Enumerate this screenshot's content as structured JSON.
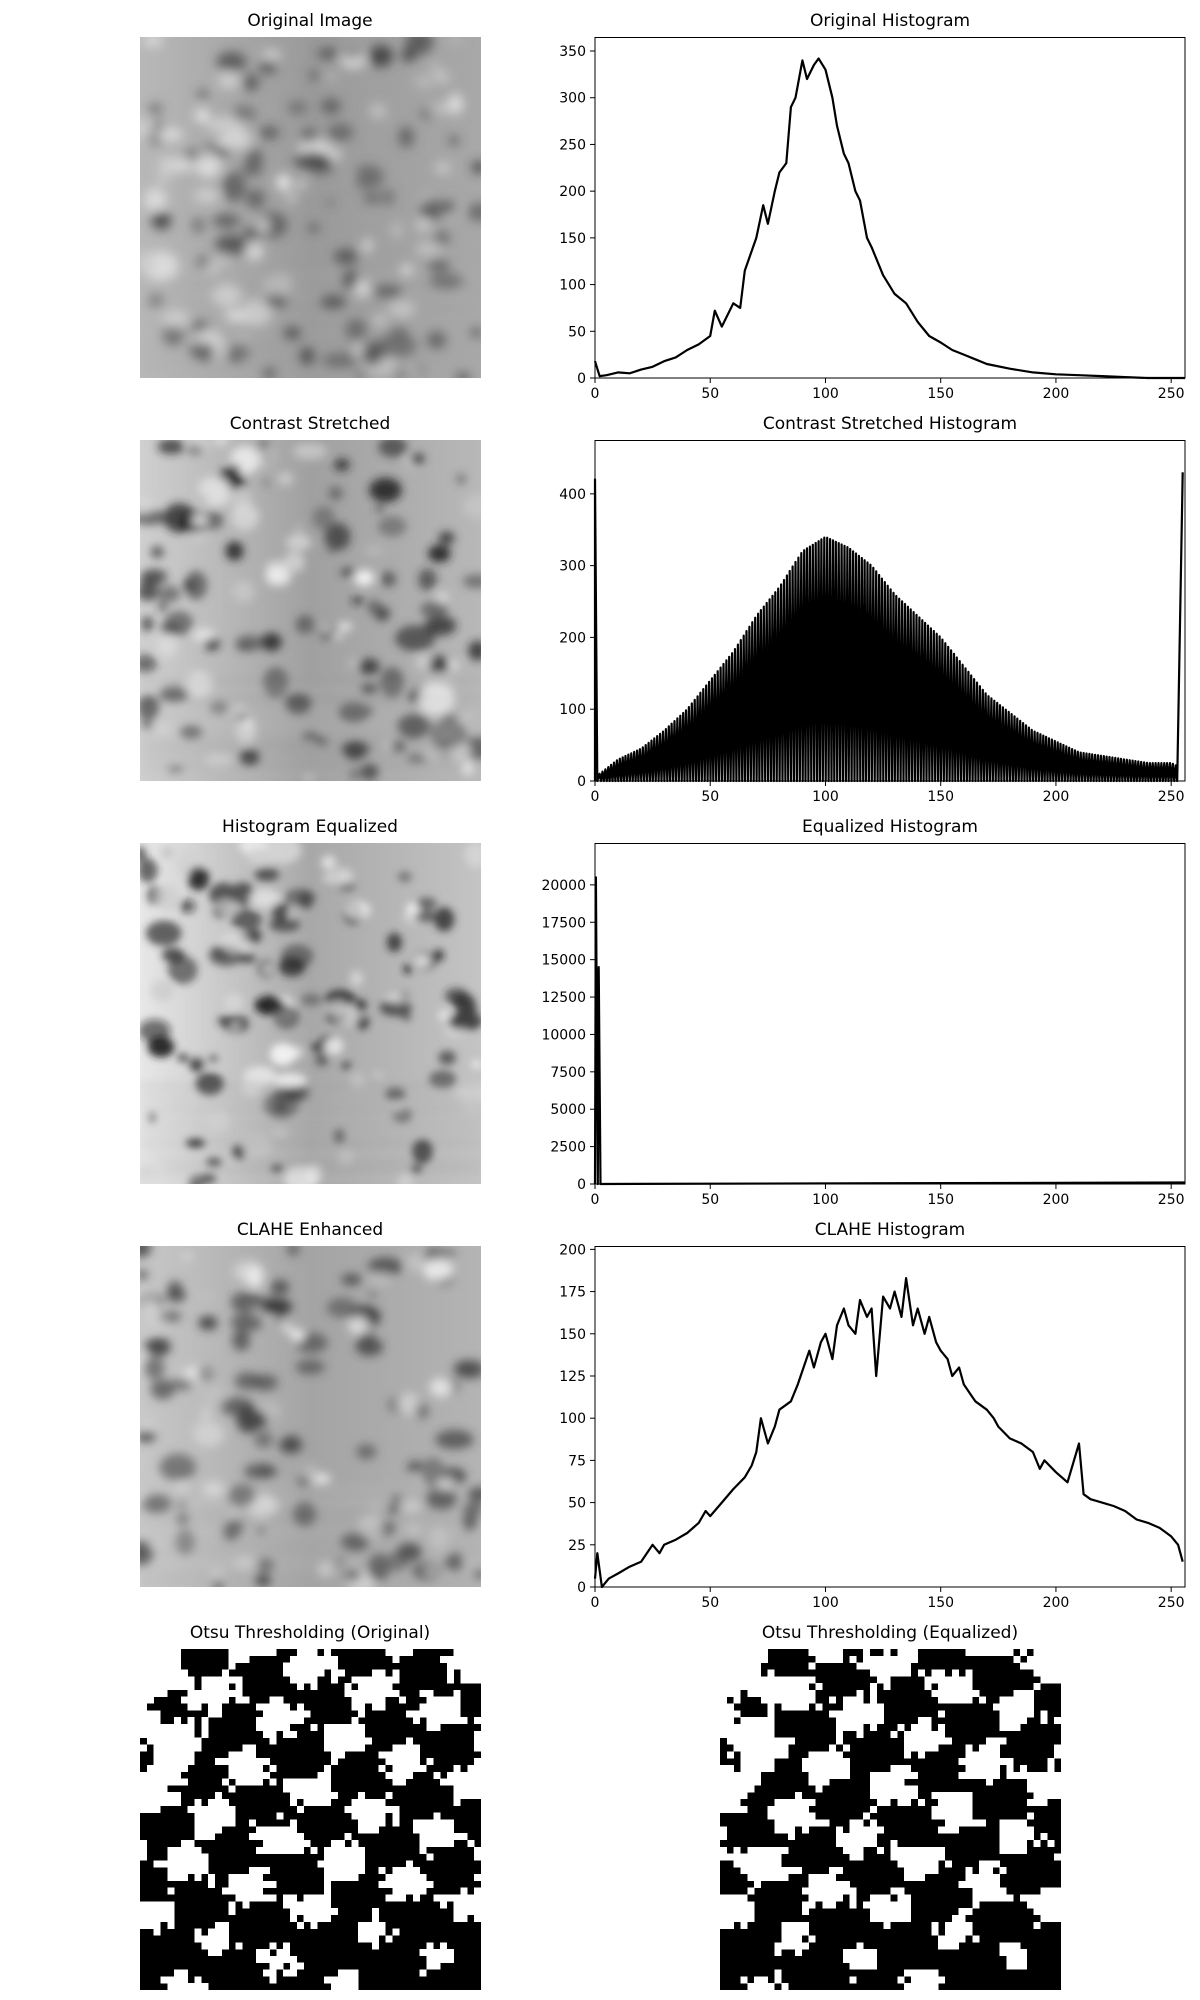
{
  "panels": {
    "original_image": "Original Image",
    "contrast_stretched": "Contrast Stretched",
    "histogram_equalized": "Histogram Equalized",
    "clahe_enhanced": "CLAHE Enhanced",
    "otsu_original": "Otsu Thresholding (Original)",
    "otsu_equalized": "Otsu Thresholding (Equalized)"
  },
  "chart_data": [
    {
      "id": "original_histogram",
      "type": "line",
      "title": "Original Histogram",
      "xlim": [
        0,
        256
      ],
      "ylim": [
        0,
        365
      ],
      "xticks": [
        0,
        50,
        100,
        150,
        200,
        250
      ],
      "yticks": [
        0,
        50,
        100,
        150,
        200,
        250,
        300,
        350
      ],
      "points": [
        [
          0,
          18
        ],
        [
          2,
          2
        ],
        [
          5,
          3
        ],
        [
          10,
          6
        ],
        [
          15,
          5
        ],
        [
          20,
          9
        ],
        [
          25,
          12
        ],
        [
          30,
          18
        ],
        [
          35,
          22
        ],
        [
          40,
          30
        ],
        [
          45,
          36
        ],
        [
          50,
          45
        ],
        [
          52,
          72
        ],
        [
          55,
          55
        ],
        [
          60,
          80
        ],
        [
          63,
          75
        ],
        [
          65,
          115
        ],
        [
          70,
          150
        ],
        [
          73,
          185
        ],
        [
          75,
          165
        ],
        [
          78,
          200
        ],
        [
          80,
          220
        ],
        [
          83,
          230
        ],
        [
          85,
          290
        ],
        [
          87,
          300
        ],
        [
          90,
          340
        ],
        [
          92,
          320
        ],
        [
          95,
          335
        ],
        [
          97,
          342
        ],
        [
          100,
          330
        ],
        [
          103,
          300
        ],
        [
          105,
          270
        ],
        [
          108,
          240
        ],
        [
          110,
          230
        ],
        [
          113,
          200
        ],
        [
          115,
          190
        ],
        [
          118,
          150
        ],
        [
          120,
          140
        ],
        [
          125,
          110
        ],
        [
          130,
          90
        ],
        [
          135,
          80
        ],
        [
          140,
          60
        ],
        [
          145,
          45
        ],
        [
          150,
          38
        ],
        [
          155,
          30
        ],
        [
          160,
          25
        ],
        [
          165,
          20
        ],
        [
          170,
          15
        ],
        [
          180,
          10
        ],
        [
          190,
          6
        ],
        [
          200,
          4
        ],
        [
          210,
          3
        ],
        [
          220,
          2
        ],
        [
          230,
          1
        ],
        [
          240,
          0
        ],
        [
          256,
          0
        ]
      ]
    },
    {
      "id": "contrast_stretched_histogram",
      "type": "line",
      "title": "Contrast Stretched Histogram",
      "xlim": [
        0,
        256
      ],
      "ylim": [
        0,
        475
      ],
      "xticks": [
        0,
        50,
        100,
        150,
        200,
        250
      ],
      "yticks": [
        0,
        100,
        200,
        300,
        400
      ],
      "spikes": [
        {
          "x": 0,
          "y": 420
        },
        {
          "x": 255,
          "y": 430
        }
      ],
      "envelope": [
        [
          2,
          10
        ],
        [
          10,
          30
        ],
        [
          20,
          45
        ],
        [
          30,
          70
        ],
        [
          40,
          100
        ],
        [
          50,
          140
        ],
        [
          60,
          180
        ],
        [
          70,
          230
        ],
        [
          80,
          270
        ],
        [
          90,
          320
        ],
        [
          100,
          340
        ],
        [
          110,
          325
        ],
        [
          120,
          300
        ],
        [
          130,
          260
        ],
        [
          140,
          230
        ],
        [
          150,
          200
        ],
        [
          160,
          160
        ],
        [
          170,
          120
        ],
        [
          180,
          95
        ],
        [
          190,
          70
        ],
        [
          200,
          55
        ],
        [
          210,
          40
        ],
        [
          220,
          35
        ],
        [
          230,
          30
        ],
        [
          240,
          25
        ],
        [
          250,
          25
        ],
        [
          253,
          20
        ]
      ]
    },
    {
      "id": "equalized_histogram",
      "type": "line",
      "title": "Equalized Histogram",
      "xlim": [
        0,
        256
      ],
      "ylim": [
        0,
        22800
      ],
      "xticks": [
        0,
        50,
        100,
        150,
        200,
        250
      ],
      "yticks": [
        0,
        2500,
        5000,
        7500,
        10000,
        12500,
        15000,
        17500,
        20000
      ],
      "points": [
        [
          0,
          0
        ],
        [
          0.4,
          20500
        ],
        [
          1.2,
          0
        ],
        [
          1.6,
          14500
        ],
        [
          2.4,
          0
        ],
        [
          256,
          100
        ]
      ]
    },
    {
      "id": "clahe_histogram",
      "type": "line",
      "title": "CLAHE Histogram",
      "xlim": [
        0,
        256
      ],
      "ylim": [
        0,
        202
      ],
      "xticks": [
        0,
        50,
        100,
        150,
        200,
        250
      ],
      "yticks": [
        0,
        25,
        50,
        75,
        100,
        125,
        150,
        175,
        200
      ],
      "points": [
        [
          0,
          5
        ],
        [
          1,
          20
        ],
        [
          3,
          0
        ],
        [
          6,
          5
        ],
        [
          10,
          8
        ],
        [
          15,
          12
        ],
        [
          20,
          15
        ],
        [
          25,
          25
        ],
        [
          28,
          20
        ],
        [
          30,
          25
        ],
        [
          35,
          28
        ],
        [
          40,
          32
        ],
        [
          45,
          38
        ],
        [
          48,
          45
        ],
        [
          50,
          42
        ],
        [
          55,
          50
        ],
        [
          60,
          58
        ],
        [
          65,
          65
        ],
        [
          68,
          72
        ],
        [
          70,
          80
        ],
        [
          72,
          100
        ],
        [
          75,
          85
        ],
        [
          78,
          95
        ],
        [
          80,
          105
        ],
        [
          85,
          110
        ],
        [
          88,
          120
        ],
        [
          90,
          128
        ],
        [
          93,
          140
        ],
        [
          95,
          130
        ],
        [
          98,
          145
        ],
        [
          100,
          150
        ],
        [
          103,
          135
        ],
        [
          105,
          155
        ],
        [
          108,
          165
        ],
        [
          110,
          155
        ],
        [
          113,
          150
        ],
        [
          115,
          170
        ],
        [
          118,
          160
        ],
        [
          120,
          165
        ],
        [
          122,
          125
        ],
        [
          125,
          172
        ],
        [
          128,
          165
        ],
        [
          130,
          175
        ],
        [
          133,
          160
        ],
        [
          135,
          183
        ],
        [
          138,
          155
        ],
        [
          140,
          165
        ],
        [
          143,
          150
        ],
        [
          145,
          160
        ],
        [
          148,
          145
        ],
        [
          150,
          140
        ],
        [
          153,
          135
        ],
        [
          155,
          125
        ],
        [
          158,
          130
        ],
        [
          160,
          120
        ],
        [
          165,
          110
        ],
        [
          170,
          105
        ],
        [
          173,
          100
        ],
        [
          175,
          95
        ],
        [
          180,
          88
        ],
        [
          185,
          85
        ],
        [
          190,
          80
        ],
        [
          193,
          70
        ],
        [
          195,
          75
        ],
        [
          200,
          68
        ],
        [
          205,
          62
        ],
        [
          210,
          85
        ],
        [
          212,
          55
        ],
        [
          215,
          52
        ],
        [
          220,
          50
        ],
        [
          225,
          48
        ],
        [
          230,
          45
        ],
        [
          235,
          40
        ],
        [
          240,
          38
        ],
        [
          245,
          35
        ],
        [
          248,
          32
        ],
        [
          250,
          30
        ],
        [
          253,
          25
        ],
        [
          255,
          15
        ]
      ]
    }
  ]
}
